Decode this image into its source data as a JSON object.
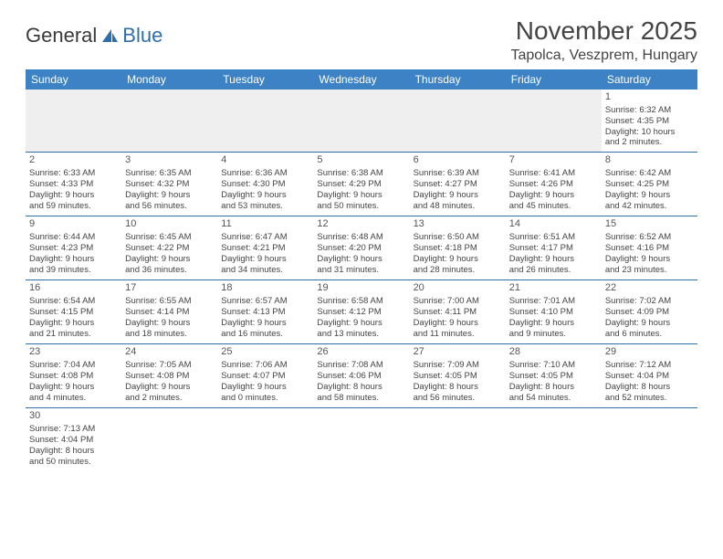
{
  "logo": {
    "word1": "General",
    "word2": "Blue"
  },
  "title": "November 2025",
  "location": "Tapolca, Veszprem, Hungary",
  "colors": {
    "header_bg": "#3c82c4",
    "header_text": "#ffffff",
    "rule": "#2f6fa8",
    "body_text": "#444444",
    "blank_bg": "#efefef",
    "logo_blue": "#2f6fa8"
  },
  "weekdays": [
    "Sunday",
    "Monday",
    "Tuesday",
    "Wednesday",
    "Thursday",
    "Friday",
    "Saturday"
  ],
  "weeks": [
    [
      null,
      null,
      null,
      null,
      null,
      null,
      {
        "n": "1",
        "sr": "Sunrise: 6:32 AM",
        "ss": "Sunset: 4:35 PM",
        "dl1": "Daylight: 10 hours",
        "dl2": "and 2 minutes."
      }
    ],
    [
      {
        "n": "2",
        "sr": "Sunrise: 6:33 AM",
        "ss": "Sunset: 4:33 PM",
        "dl1": "Daylight: 9 hours",
        "dl2": "and 59 minutes."
      },
      {
        "n": "3",
        "sr": "Sunrise: 6:35 AM",
        "ss": "Sunset: 4:32 PM",
        "dl1": "Daylight: 9 hours",
        "dl2": "and 56 minutes."
      },
      {
        "n": "4",
        "sr": "Sunrise: 6:36 AM",
        "ss": "Sunset: 4:30 PM",
        "dl1": "Daylight: 9 hours",
        "dl2": "and 53 minutes."
      },
      {
        "n": "5",
        "sr": "Sunrise: 6:38 AM",
        "ss": "Sunset: 4:29 PM",
        "dl1": "Daylight: 9 hours",
        "dl2": "and 50 minutes."
      },
      {
        "n": "6",
        "sr": "Sunrise: 6:39 AM",
        "ss": "Sunset: 4:27 PM",
        "dl1": "Daylight: 9 hours",
        "dl2": "and 48 minutes."
      },
      {
        "n": "7",
        "sr": "Sunrise: 6:41 AM",
        "ss": "Sunset: 4:26 PM",
        "dl1": "Daylight: 9 hours",
        "dl2": "and 45 minutes."
      },
      {
        "n": "8",
        "sr": "Sunrise: 6:42 AM",
        "ss": "Sunset: 4:25 PM",
        "dl1": "Daylight: 9 hours",
        "dl2": "and 42 minutes."
      }
    ],
    [
      {
        "n": "9",
        "sr": "Sunrise: 6:44 AM",
        "ss": "Sunset: 4:23 PM",
        "dl1": "Daylight: 9 hours",
        "dl2": "and 39 minutes."
      },
      {
        "n": "10",
        "sr": "Sunrise: 6:45 AM",
        "ss": "Sunset: 4:22 PM",
        "dl1": "Daylight: 9 hours",
        "dl2": "and 36 minutes."
      },
      {
        "n": "11",
        "sr": "Sunrise: 6:47 AM",
        "ss": "Sunset: 4:21 PM",
        "dl1": "Daylight: 9 hours",
        "dl2": "and 34 minutes."
      },
      {
        "n": "12",
        "sr": "Sunrise: 6:48 AM",
        "ss": "Sunset: 4:20 PM",
        "dl1": "Daylight: 9 hours",
        "dl2": "and 31 minutes."
      },
      {
        "n": "13",
        "sr": "Sunrise: 6:50 AM",
        "ss": "Sunset: 4:18 PM",
        "dl1": "Daylight: 9 hours",
        "dl2": "and 28 minutes."
      },
      {
        "n": "14",
        "sr": "Sunrise: 6:51 AM",
        "ss": "Sunset: 4:17 PM",
        "dl1": "Daylight: 9 hours",
        "dl2": "and 26 minutes."
      },
      {
        "n": "15",
        "sr": "Sunrise: 6:52 AM",
        "ss": "Sunset: 4:16 PM",
        "dl1": "Daylight: 9 hours",
        "dl2": "and 23 minutes."
      }
    ],
    [
      {
        "n": "16",
        "sr": "Sunrise: 6:54 AM",
        "ss": "Sunset: 4:15 PM",
        "dl1": "Daylight: 9 hours",
        "dl2": "and 21 minutes."
      },
      {
        "n": "17",
        "sr": "Sunrise: 6:55 AM",
        "ss": "Sunset: 4:14 PM",
        "dl1": "Daylight: 9 hours",
        "dl2": "and 18 minutes."
      },
      {
        "n": "18",
        "sr": "Sunrise: 6:57 AM",
        "ss": "Sunset: 4:13 PM",
        "dl1": "Daylight: 9 hours",
        "dl2": "and 16 minutes."
      },
      {
        "n": "19",
        "sr": "Sunrise: 6:58 AM",
        "ss": "Sunset: 4:12 PM",
        "dl1": "Daylight: 9 hours",
        "dl2": "and 13 minutes."
      },
      {
        "n": "20",
        "sr": "Sunrise: 7:00 AM",
        "ss": "Sunset: 4:11 PM",
        "dl1": "Daylight: 9 hours",
        "dl2": "and 11 minutes."
      },
      {
        "n": "21",
        "sr": "Sunrise: 7:01 AM",
        "ss": "Sunset: 4:10 PM",
        "dl1": "Daylight: 9 hours",
        "dl2": "and 9 minutes."
      },
      {
        "n": "22",
        "sr": "Sunrise: 7:02 AM",
        "ss": "Sunset: 4:09 PM",
        "dl1": "Daylight: 9 hours",
        "dl2": "and 6 minutes."
      }
    ],
    [
      {
        "n": "23",
        "sr": "Sunrise: 7:04 AM",
        "ss": "Sunset: 4:08 PM",
        "dl1": "Daylight: 9 hours",
        "dl2": "and 4 minutes."
      },
      {
        "n": "24",
        "sr": "Sunrise: 7:05 AM",
        "ss": "Sunset: 4:08 PM",
        "dl1": "Daylight: 9 hours",
        "dl2": "and 2 minutes."
      },
      {
        "n": "25",
        "sr": "Sunrise: 7:06 AM",
        "ss": "Sunset: 4:07 PM",
        "dl1": "Daylight: 9 hours",
        "dl2": "and 0 minutes."
      },
      {
        "n": "26",
        "sr": "Sunrise: 7:08 AM",
        "ss": "Sunset: 4:06 PM",
        "dl1": "Daylight: 8 hours",
        "dl2": "and 58 minutes."
      },
      {
        "n": "27",
        "sr": "Sunrise: 7:09 AM",
        "ss": "Sunset: 4:05 PM",
        "dl1": "Daylight: 8 hours",
        "dl2": "and 56 minutes."
      },
      {
        "n": "28",
        "sr": "Sunrise: 7:10 AM",
        "ss": "Sunset: 4:05 PM",
        "dl1": "Daylight: 8 hours",
        "dl2": "and 54 minutes."
      },
      {
        "n": "29",
        "sr": "Sunrise: 7:12 AM",
        "ss": "Sunset: 4:04 PM",
        "dl1": "Daylight: 8 hours",
        "dl2": "and 52 minutes."
      }
    ],
    [
      {
        "n": "30",
        "sr": "Sunrise: 7:13 AM",
        "ss": "Sunset: 4:04 PM",
        "dl1": "Daylight: 8 hours",
        "dl2": "and 50 minutes."
      },
      null,
      null,
      null,
      null,
      null,
      null
    ]
  ]
}
